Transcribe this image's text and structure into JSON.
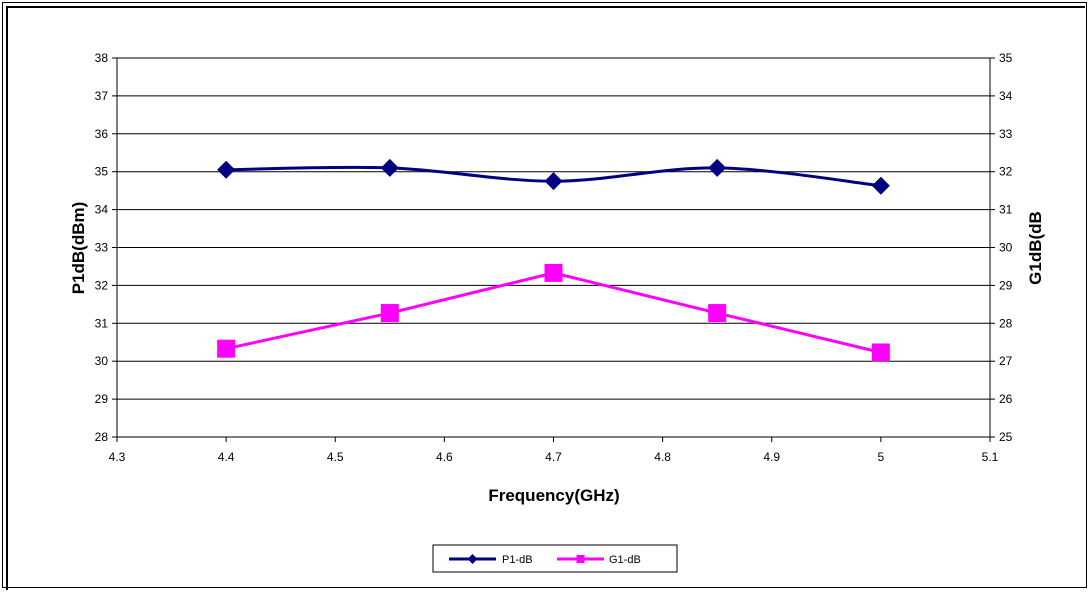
{
  "chart_data": {
    "type": "line",
    "xlabel": "Frequency(GHz)",
    "ylabel_left": "P1dB(dBm)",
    "ylabel_right": "G1dB(dB",
    "xlim": [
      4.3,
      5.1
    ],
    "ylim_left": [
      28,
      38
    ],
    "ylim_right": [
      25,
      35
    ],
    "x_ticks": [
      "4.3",
      "4.4",
      "4.5",
      "4.6",
      "4.7",
      "4.8",
      "4.9",
      "5",
      "5.1"
    ],
    "y_left_ticks": [
      "28",
      "29",
      "30",
      "31",
      "32",
      "33",
      "34",
      "35",
      "36",
      "37",
      "38"
    ],
    "y_right_ticks": [
      "25",
      "26",
      "27",
      "28",
      "29",
      "30",
      "31",
      "32",
      "33",
      "34",
      "35"
    ],
    "grid": "horizontal",
    "legend_position": "bottom",
    "series": [
      {
        "name": "P1-dB",
        "axis": "left",
        "color": "#000080",
        "marker": "diamond",
        "smooth": true,
        "x": [
          4.4,
          4.55,
          4.7,
          4.85,
          5.0
        ],
        "values": [
          35.05,
          35.1,
          34.75,
          35.1,
          34.63
        ]
      },
      {
        "name": "G1-dB",
        "axis": "right",
        "color": "#ff00ff",
        "marker": "square",
        "smooth": false,
        "x": [
          4.4,
          4.55,
          4.7,
          4.85,
          5.0
        ],
        "values": [
          27.33,
          28.27,
          29.33,
          28.27,
          27.23
        ]
      }
    ]
  }
}
